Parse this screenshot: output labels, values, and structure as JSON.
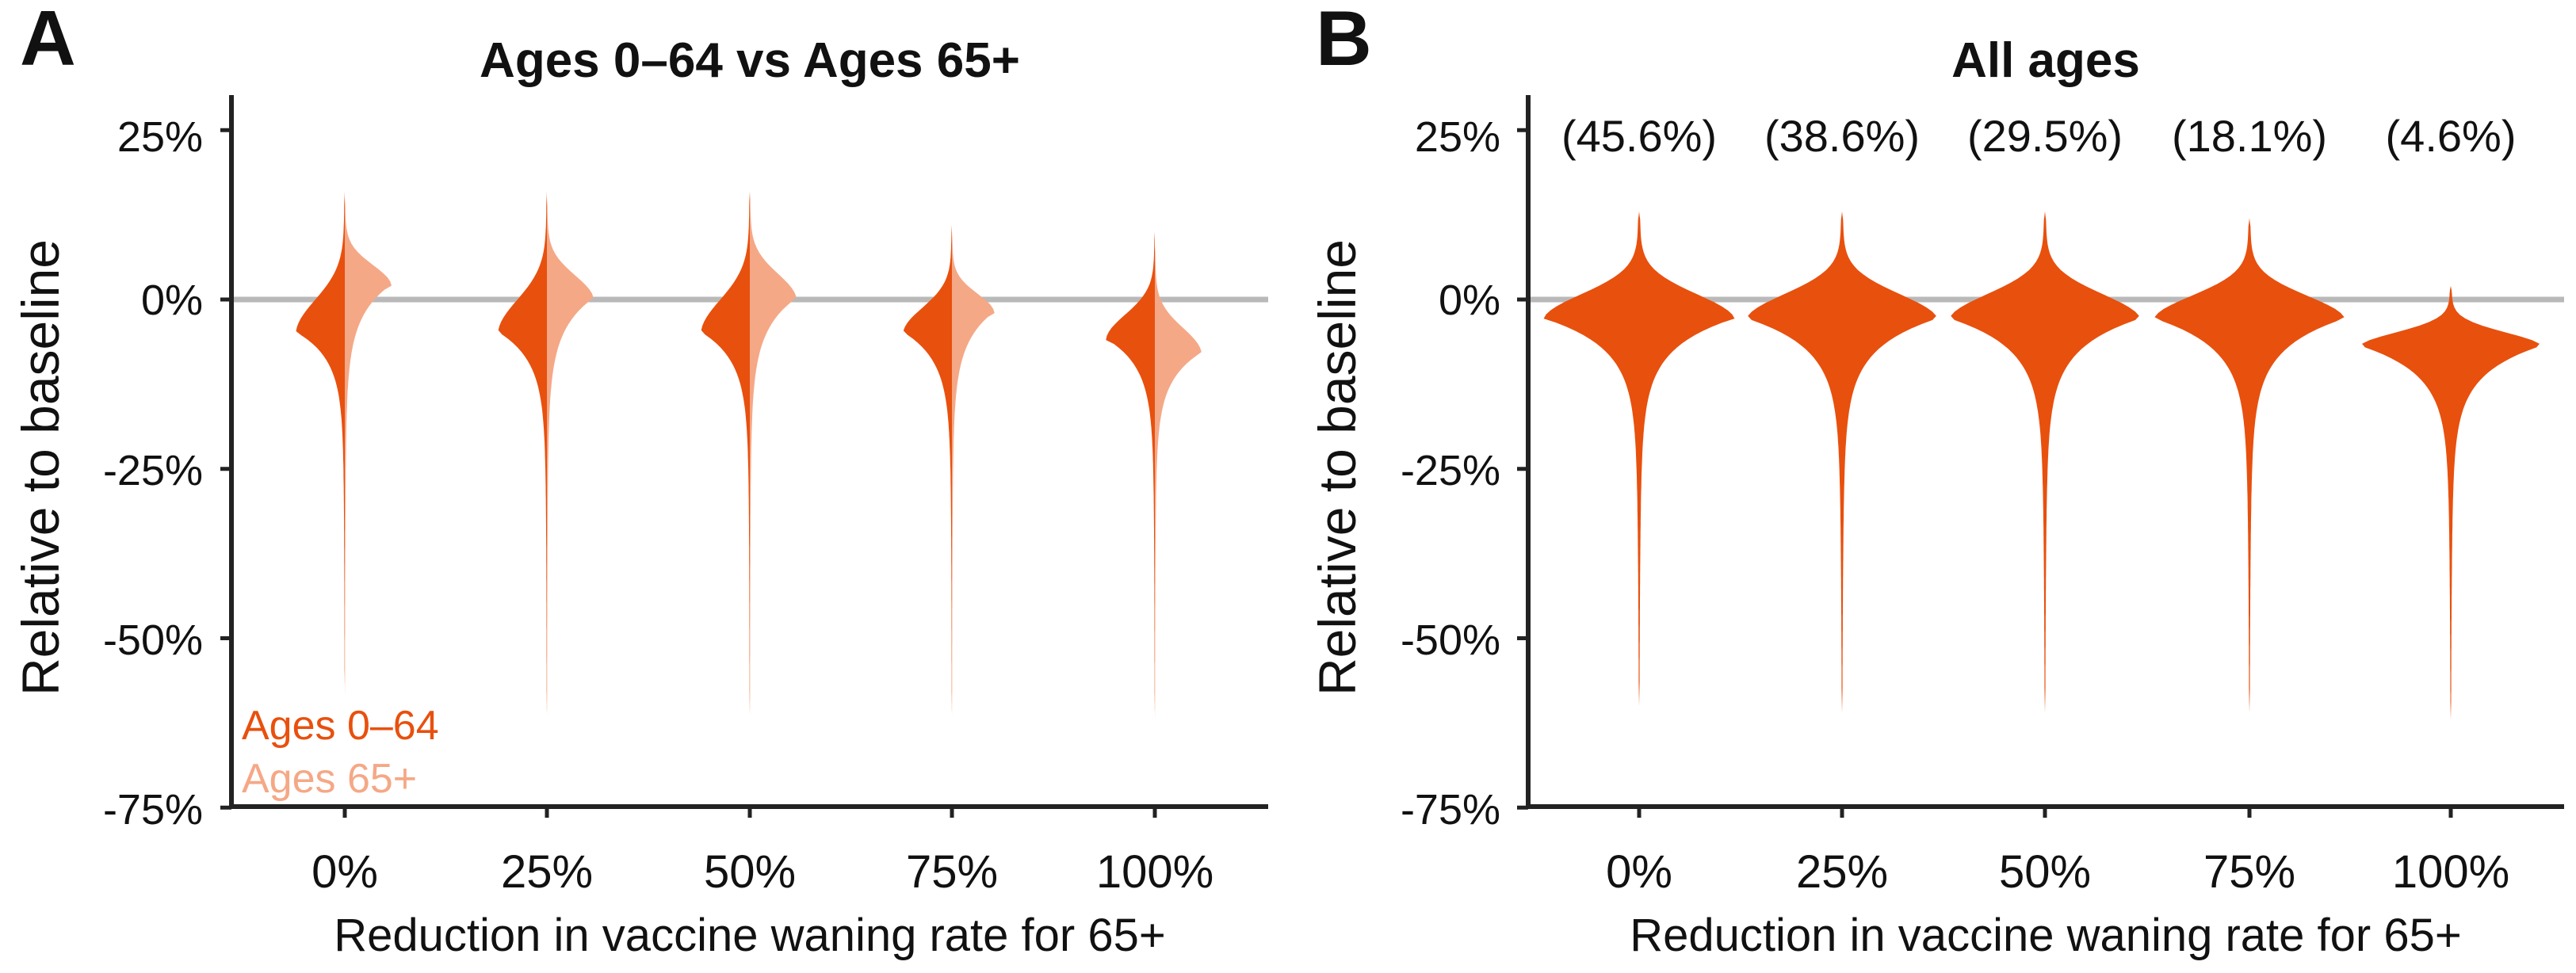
{
  "colors": {
    "young": "#e8500e",
    "old": "#f5a886",
    "baseline": "#b9b9b9",
    "axis": "#222222",
    "text": "#111111"
  },
  "panels": [
    {
      "letter": "A",
      "title": "Ages 0–64 vs Ages 65+",
      "ylabel": "Relative to baseline",
      "xlabel": "Reduction in vaccine waning rate for 65+",
      "legend": [
        {
          "label": "Ages 0–64",
          "color": "#e8500e"
        },
        {
          "label": "Ages 65+",
          "color": "#f5a886"
        }
      ]
    },
    {
      "letter": "B",
      "title": "All ages",
      "ylabel": "Relative to baseline",
      "xlabel": "Reduction in vaccine waning rate for 65+",
      "annotations": [
        "(45.6%)",
        "(38.6%)",
        "(29.5%)",
        "(18.1%)",
        "(4.6%)"
      ]
    }
  ],
  "chart_data": [
    {
      "type": "violin",
      "title": "Ages 0–64 vs Ages 65+",
      "xlabel": "Reduction in vaccine waning rate for 65+",
      "ylabel": "Relative to baseline",
      "categories": [
        "0%",
        "25%",
        "50%",
        "75%",
        "100%"
      ],
      "yticks": [
        "25%",
        "0%",
        "-25%",
        "-50%",
        "-75%"
      ],
      "ylim": [
        -75,
        30
      ],
      "baseline": 0,
      "legend_position": "bottom-left",
      "split": true,
      "series": [
        {
          "name": "Ages 0–64",
          "side": "left",
          "ranges": [
            [
              -57,
              16
            ],
            [
              -61,
              16
            ],
            [
              -61,
              16
            ],
            [
              -61,
              11
            ],
            [
              -61,
              10
            ]
          ],
          "modes": [
            -5,
            -5,
            -5,
            -5,
            -6
          ],
          "peak_width": [
            0.23,
            0.23,
            0.23,
            0.23,
            0.23
          ]
        },
        {
          "name": "Ages 65+",
          "side": "right",
          "ranges": [
            [
              -59,
              15
            ],
            [
              -62,
              15
            ],
            [
              -62,
              16
            ],
            [
              -62,
              10
            ],
            [
              -62,
              8
            ]
          ],
          "modes": [
            2,
            0,
            0,
            -2,
            -8
          ],
          "peak_width": [
            0.22,
            0.22,
            0.22,
            0.2,
            0.22
          ]
        }
      ]
    },
    {
      "type": "violin",
      "title": "All ages",
      "xlabel": "Reduction in vaccine waning rate for 65+",
      "ylabel": "Relative to baseline",
      "categories": [
        "0%",
        "25%",
        "50%",
        "75%",
        "100%"
      ],
      "yticks": [
        "25%",
        "0%",
        "-25%",
        "-50%",
        "-75%"
      ],
      "ylim": [
        -75,
        30
      ],
      "baseline": 0,
      "annotations": [
        "(45.6%)",
        "(38.6%)",
        "(29.5%)",
        "(18.1%)",
        "(4.6%)"
      ],
      "series": [
        {
          "name": "",
          "ranges": [
            [
              -60,
              13
            ],
            [
              -61,
              13
            ],
            [
              -61,
              13
            ],
            [
              -61,
              12
            ],
            [
              -62,
              2
            ]
          ],
          "modes": [
            -3,
            -3,
            -3,
            -3,
            -7
          ],
          "peak_width": [
            0.45,
            0.45,
            0.45,
            0.45,
            0.43
          ]
        }
      ]
    }
  ]
}
